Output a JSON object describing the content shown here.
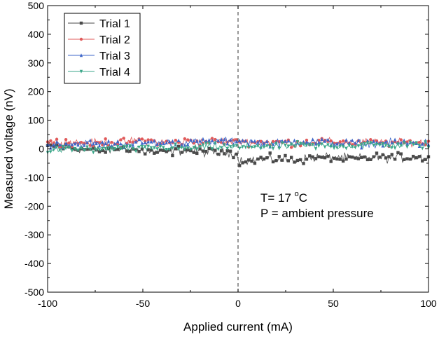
{
  "chart_data": {
    "type": "line",
    "xlabel": "Applied current (mA)",
    "ylabel": "Measured voltage (nV)",
    "xlim": [
      -100,
      100
    ],
    "ylim": [
      -500,
      500
    ],
    "x_ticks": [
      -100,
      -50,
      0,
      50,
      100
    ],
    "y_ticks": [
      -500,
      -400,
      -300,
      -200,
      -100,
      0,
      100,
      200,
      300,
      400,
      500
    ],
    "grid": false,
    "legend_position": "top-left",
    "reference_line": {
      "x": 0,
      "style": "dashed",
      "color": "#555555"
    },
    "annotations": {
      "temperature_prefix": "T= 17 ",
      "temperature_superscript": "o",
      "temperature_unit": "C",
      "pressure": "P = ambient pressure"
    },
    "series": [
      {
        "name": "Trial 1",
        "color": "#4a4a4a",
        "marker": "square",
        "x": [
          -100,
          -90,
          -80,
          -70,
          -60,
          -50,
          -40,
          -30,
          -20,
          -10,
          -1,
          0,
          10,
          20,
          30,
          40,
          50,
          60,
          70,
          80,
          90,
          100
        ],
        "values": [
          10,
          5,
          0,
          -5,
          3,
          -8,
          -12,
          -5,
          -10,
          -15,
          -12,
          -40,
          -38,
          -35,
          -40,
          -30,
          -28,
          -35,
          -30,
          -32,
          -30,
          -28
        ]
      },
      {
        "name": "Trial 2",
        "color": "#e05a5a",
        "marker": "circle",
        "x": [
          -100,
          -90,
          -80,
          -70,
          -60,
          -50,
          -40,
          -30,
          -20,
          -10,
          0,
          10,
          20,
          30,
          40,
          50,
          60,
          70,
          80,
          90,
          100
        ],
        "values": [
          22,
          25,
          20,
          24,
          25,
          30,
          22,
          25,
          24,
          28,
          25,
          22,
          24,
          20,
          25,
          24,
          22,
          25,
          20,
          24,
          22
        ]
      },
      {
        "name": "Trial 3",
        "color": "#3d66c9",
        "marker": "triangle",
        "x": [
          -100,
          -90,
          -80,
          -70,
          -60,
          -50,
          -40,
          -30,
          -20,
          -10,
          0,
          10,
          20,
          30,
          40,
          50,
          60,
          70,
          80,
          90,
          100
        ],
        "values": [
          12,
          18,
          20,
          15,
          18,
          22,
          20,
          25,
          22,
          25,
          28,
          22,
          20,
          24,
          25,
          22,
          20,
          18,
          22,
          20,
          18
        ]
      },
      {
        "name": "Trial 4",
        "color": "#3aa688",
        "marker": "triangle-down",
        "x": [
          -100,
          -90,
          -80,
          -70,
          -60,
          -50,
          -40,
          -30,
          -20,
          -10,
          0,
          10,
          20,
          30,
          40,
          50,
          60,
          70,
          80,
          90,
          100
        ],
        "values": [
          -5,
          -2,
          0,
          -3,
          2,
          0,
          5,
          3,
          5,
          8,
          5,
          10,
          8,
          12,
          10,
          12,
          10,
          15,
          12,
          14,
          12
        ]
      }
    ]
  }
}
